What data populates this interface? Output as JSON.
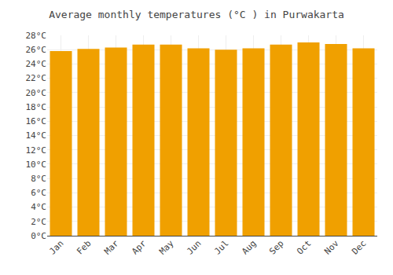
{
  "chart_data": {
    "type": "bar",
    "title": "Average monthly temperatures (°C ) in Purwakarta",
    "categories": [
      "Jan",
      "Feb",
      "Mar",
      "Apr",
      "May",
      "Jun",
      "Jul",
      "Aug",
      "Sep",
      "Oct",
      "Nov",
      "Dec"
    ],
    "values": [
      25.8,
      26.1,
      26.3,
      26.7,
      26.7,
      26.2,
      26.0,
      26.2,
      26.7,
      27.0,
      26.8,
      26.2
    ],
    "color": "#F0A000",
    "ylim": [
      0,
      28
    ],
    "yticks": [
      {
        "value": 0,
        "label": "0°C"
      },
      {
        "value": 2,
        "label": "2°C"
      },
      {
        "value": 4,
        "label": "4°C"
      },
      {
        "value": 6,
        "label": "6°C"
      },
      {
        "value": 8,
        "label": "8°C"
      },
      {
        "value": 10,
        "label": "10°C"
      },
      {
        "value": 12,
        "label": "12°C"
      },
      {
        "value": 14,
        "label": "14°C"
      },
      {
        "value": 16,
        "label": "16°C"
      },
      {
        "value": 18,
        "label": "18°C"
      },
      {
        "value": 20,
        "label": "20°C"
      },
      {
        "value": 22,
        "label": "22°C"
      },
      {
        "value": 24,
        "label": "24°C"
      },
      {
        "value": 26,
        "label": "26°C"
      },
      {
        "value": 28,
        "label": "28°C"
      }
    ],
    "grid": true
  }
}
